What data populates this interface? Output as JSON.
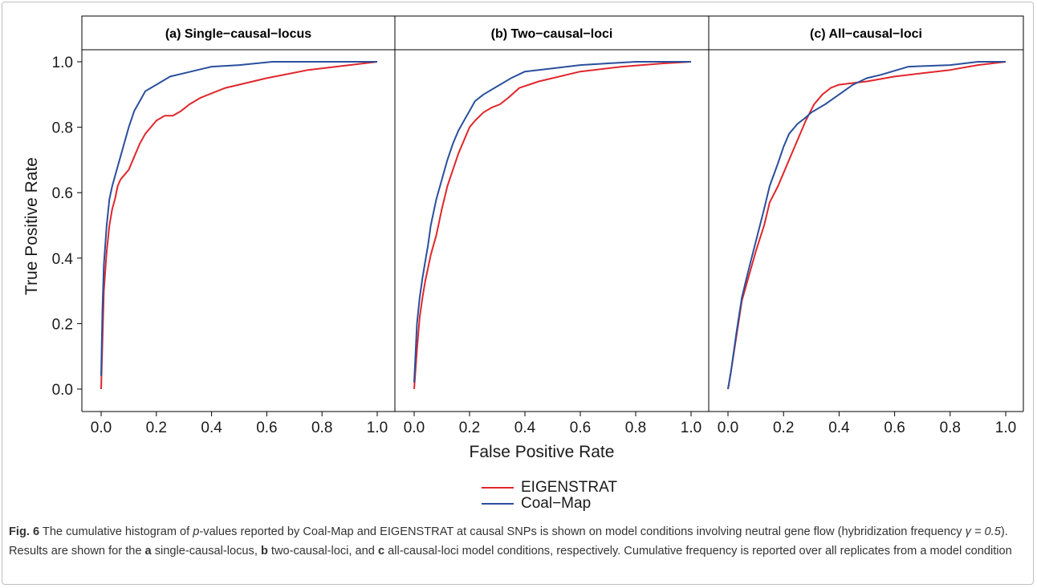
{
  "colors": {
    "eigenstrat": "#e0262c",
    "coalmap": "#2a4f9c",
    "axis": "#000000",
    "stripBg": "#ffffff"
  },
  "chart_data": {
    "type": "line",
    "xlabel": "False Positive Rate",
    "ylabel": "True Positive Rate",
    "xlim": [
      0.0,
      1.0
    ],
    "ylim": [
      0.0,
      1.0
    ],
    "x_ticks": [
      "0.0",
      "0.2",
      "0.4",
      "0.6",
      "0.8",
      "1.0"
    ],
    "y_ticks": [
      "0.0",
      "0.2",
      "0.4",
      "0.6",
      "0.8",
      "1.0"
    ],
    "grid": false,
    "legend_position": "bottom-center",
    "legend": [
      "EIGENSTRAT",
      "Coal−Map"
    ],
    "panels": [
      {
        "title": "(a) Single−causal−locus",
        "series": [
          {
            "name": "EIGENSTRAT",
            "x": [
              0.0,
              0.005,
              0.01,
              0.02,
              0.03,
              0.04,
              0.05,
              0.06,
              0.07,
              0.08,
              0.1,
              0.12,
              0.14,
              0.16,
              0.18,
              0.2,
              0.23,
              0.26,
              0.29,
              0.32,
              0.36,
              0.45,
              0.6,
              0.75,
              0.9,
              1.0
            ],
            "y": [
              0.0,
              0.15,
              0.3,
              0.42,
              0.5,
              0.55,
              0.58,
              0.62,
              0.64,
              0.65,
              0.67,
              0.71,
              0.75,
              0.78,
              0.8,
              0.82,
              0.835,
              0.835,
              0.85,
              0.87,
              0.89,
              0.92,
              0.95,
              0.975,
              0.99,
              1.0
            ]
          },
          {
            "name": "Coal−Map",
            "x": [
              0.0,
              0.005,
              0.01,
              0.02,
              0.03,
              0.04,
              0.05,
              0.06,
              0.07,
              0.08,
              0.09,
              0.1,
              0.12,
              0.14,
              0.16,
              0.18,
              0.2,
              0.22,
              0.25,
              0.3,
              0.35,
              0.4,
              0.5,
              0.62,
              0.8,
              1.0
            ],
            "y": [
              0.04,
              0.25,
              0.38,
              0.5,
              0.58,
              0.62,
              0.65,
              0.68,
              0.71,
              0.74,
              0.77,
              0.8,
              0.85,
              0.88,
              0.91,
              0.92,
              0.93,
              0.94,
              0.955,
              0.965,
              0.975,
              0.985,
              0.99,
              1.0,
              1.0,
              1.0
            ]
          }
        ]
      },
      {
        "title": "(b) Two−causal−loci",
        "series": [
          {
            "name": "EIGENSTRAT",
            "x": [
              0.0,
              0.01,
              0.02,
              0.03,
              0.04,
              0.05,
              0.06,
              0.08,
              0.1,
              0.12,
              0.14,
              0.16,
              0.18,
              0.2,
              0.22,
              0.25,
              0.28,
              0.31,
              0.34,
              0.38,
              0.45,
              0.6,
              0.75,
              0.9,
              1.0
            ],
            "y": [
              0.0,
              0.12,
              0.22,
              0.28,
              0.33,
              0.37,
              0.41,
              0.47,
              0.55,
              0.62,
              0.67,
              0.72,
              0.76,
              0.8,
              0.82,
              0.845,
              0.86,
              0.87,
              0.89,
              0.92,
              0.94,
              0.97,
              0.985,
              0.995,
              1.0
            ]
          },
          {
            "name": "Coal−Map",
            "x": [
              0.0,
              0.01,
              0.02,
              0.03,
              0.04,
              0.05,
              0.06,
              0.08,
              0.1,
              0.12,
              0.14,
              0.16,
              0.18,
              0.2,
              0.22,
              0.25,
              0.3,
              0.35,
              0.4,
              0.5,
              0.6,
              0.7,
              0.8,
              1.0
            ],
            "y": [
              0.02,
              0.2,
              0.28,
              0.34,
              0.39,
              0.44,
              0.5,
              0.58,
              0.64,
              0.7,
              0.75,
              0.79,
              0.82,
              0.85,
              0.88,
              0.9,
              0.925,
              0.95,
              0.97,
              0.98,
              0.99,
              0.995,
              1.0,
              1.0
            ]
          }
        ]
      },
      {
        "title": "(c) All−causal−loci",
        "series": [
          {
            "name": "EIGENSTRAT",
            "x": [
              0.0,
              0.01,
              0.03,
              0.05,
              0.07,
              0.1,
              0.13,
              0.15,
              0.18,
              0.2,
              0.22,
              0.25,
              0.28,
              0.31,
              0.34,
              0.37,
              0.4,
              0.45,
              0.5,
              0.6,
              0.7,
              0.8,
              0.9,
              1.0
            ],
            "y": [
              0.0,
              0.05,
              0.16,
              0.27,
              0.33,
              0.42,
              0.5,
              0.57,
              0.62,
              0.66,
              0.7,
              0.76,
              0.82,
              0.87,
              0.9,
              0.92,
              0.93,
              0.935,
              0.94,
              0.955,
              0.965,
              0.975,
              0.99,
              1.0
            ]
          },
          {
            "name": "Coal−Map",
            "x": [
              0.0,
              0.01,
              0.03,
              0.05,
              0.07,
              0.1,
              0.13,
              0.15,
              0.18,
              0.2,
              0.22,
              0.25,
              0.28,
              0.3,
              0.35,
              0.4,
              0.45,
              0.5,
              0.55,
              0.65,
              0.8,
              0.9,
              1.0
            ],
            "y": [
              0.0,
              0.05,
              0.17,
              0.28,
              0.35,
              0.45,
              0.55,
              0.62,
              0.69,
              0.74,
              0.78,
              0.81,
              0.83,
              0.845,
              0.87,
              0.9,
              0.93,
              0.95,
              0.96,
              0.985,
              0.99,
              1.0,
              1.0
            ]
          }
        ]
      }
    ]
  },
  "caption": {
    "label": "Fig. 6",
    "part1": " The cumulative histogram of ",
    "pvar": "p",
    "part2": "-values reported by Coal-Map and EIGENSTRAT at causal SNPs is shown on model conditions involving neutral gene flow (hybridization frequency ",
    "gamma": "γ = 0.5",
    "part3": "). Results are shown for the ",
    "a": "a",
    "part4": " single-causal-locus, ",
    "b": "b",
    "part5": " two-causal-loci, and ",
    "c": "c",
    "part6": " all-causal-loci model conditions, respectively. Cumulative frequency is reported over all replicates from a model condition"
  }
}
